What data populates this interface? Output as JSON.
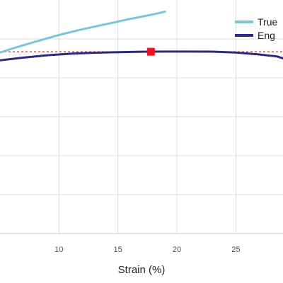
{
  "chart_data": {
    "type": "line",
    "xlabel": "Strain (%)",
    "ylabel": "",
    "title": "",
    "xlim": [
      5,
      29
    ],
    "ylim": [
      0,
      6
    ],
    "x_ticks": [
      10,
      15,
      20,
      25
    ],
    "grid": true,
    "legend": {
      "placement": "top-right",
      "entries": [
        "True",
        "Eng"
      ]
    },
    "series": [
      {
        "name": "True",
        "color": "#7cc4dc",
        "x": [
          5,
          6,
          8,
          10,
          12,
          14,
          16,
          18,
          19
        ],
        "y": [
          4.65,
          4.75,
          4.93,
          5.1,
          5.25,
          5.38,
          5.51,
          5.63,
          5.7
        ]
      },
      {
        "name": "Eng",
        "color": "#2b2a7e",
        "x": [
          5,
          7,
          9,
          11,
          13,
          15,
          17,
          19,
          21,
          23,
          25,
          27,
          28.5,
          29
        ],
        "y": [
          4.45,
          4.52,
          4.58,
          4.62,
          4.645,
          4.66,
          4.67,
          4.675,
          4.675,
          4.672,
          4.65,
          4.6,
          4.55,
          4.5
        ]
      }
    ],
    "reference_line": {
      "y": 4.67,
      "x_from": 5,
      "x_to": 29,
      "color": "#e23838",
      "style": "dotted"
    },
    "marker": {
      "x": 17.8,
      "y": 4.67,
      "color": "#ee1122",
      "shape": "square"
    }
  }
}
